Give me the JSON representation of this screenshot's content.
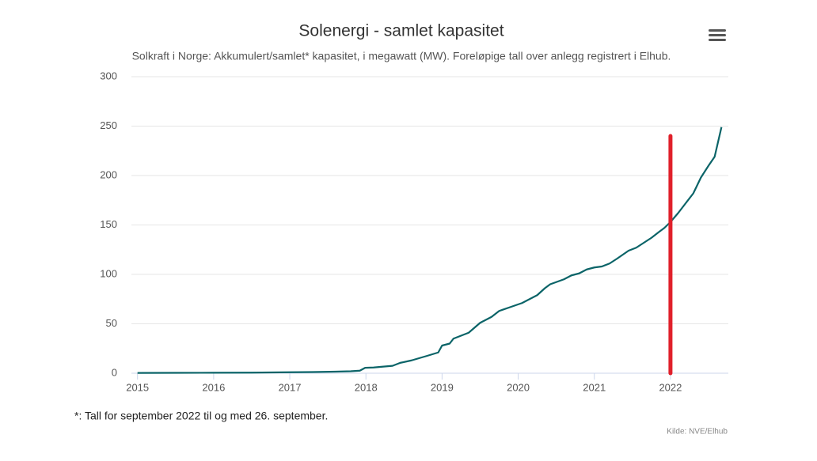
{
  "chart_data": {
    "type": "line",
    "title": "Solenergi - samlet kapasitet",
    "subtitle": "Solkraft i Norge: Akkumulert/samlet* kapasitet, i megawatt (MW). Foreløpige tall over anlegg registrert i Elhub.",
    "footnote": "*: Tall for september 2022 til og med 26. september.",
    "source": "Kilde: NVE/Elhub",
    "series": [
      {
        "color": "#0b6468",
        "x": [
          2015.0,
          2015.5,
          2016.0,
          2016.5,
          2017.0,
          2017.3,
          2017.6,
          2017.8,
          2017.92,
          2017.99,
          2018.1,
          2018.2,
          2018.35,
          2018.45,
          2018.6,
          2018.8,
          2018.95,
          2019.0,
          2019.1,
          2019.15,
          2019.35,
          2019.5,
          2019.65,
          2019.75,
          2019.9,
          2020.05,
          2020.25,
          2020.35,
          2020.42,
          2020.6,
          2020.7,
          2020.8,
          2020.9,
          2021.0,
          2021.1,
          2021.2,
          2021.3,
          2021.45,
          2021.55,
          2021.75,
          2021.85,
          2021.92,
          2022.0,
          2022.1,
          2022.2,
          2022.3,
          2022.4,
          2022.5,
          2022.58,
          2022.67
        ],
        "values": [
          0.3,
          0.4,
          0.5,
          0.6,
          1,
          1.2,
          1.6,
          2,
          2.6,
          5.5,
          5.8,
          6.5,
          7.5,
          10.5,
          13,
          17.5,
          21,
          28,
          30,
          35,
          41,
          51,
          57,
          63,
          67,
          71,
          79,
          86,
          90,
          95,
          99,
          101,
          105,
          107,
          108,
          111,
          116,
          124,
          127,
          137,
          143,
          147,
          153,
          162,
          172,
          182,
          198,
          210,
          219,
          249
        ]
      }
    ],
    "vertical_line": {
      "x": 2022,
      "y": [
        0,
        240
      ],
      "color": "#e0202a"
    },
    "xlim": [
      2014.92,
      2022.76
    ],
    "xticks": [
      2015,
      2016,
      2017,
      2018,
      2019,
      2020,
      2021,
      2022
    ],
    "ylim": [
      0,
      300
    ],
    "yticks": [
      0,
      50,
      100,
      150,
      200,
      250,
      300
    ],
    "grid": true
  }
}
